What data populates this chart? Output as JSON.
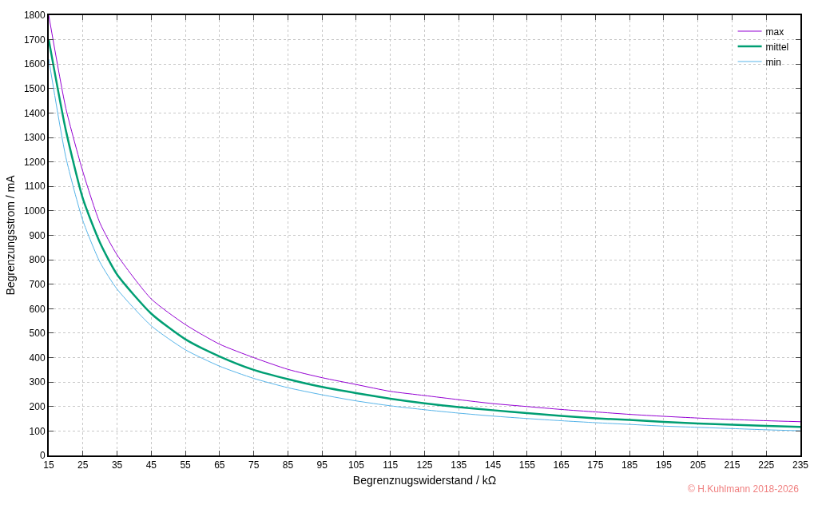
{
  "chart_data": {
    "type": "line",
    "xlabel": "Begrenznugswiderstand / kΩ",
    "ylabel": "Begrenzungsstrom / mA",
    "x": [
      15,
      20,
      25,
      30,
      35,
      45,
      55,
      65,
      75,
      85,
      95,
      105,
      115,
      125,
      135,
      145,
      155,
      165,
      175,
      185,
      195,
      205,
      215,
      225,
      235
    ],
    "series": [
      {
        "name": "max",
        "color": "#9400d3",
        "values": [
          1800,
          1420,
          1160,
          950,
          820,
          640,
          535,
          455,
          400,
          352,
          318,
          290,
          262,
          245,
          228,
          212,
          200,
          188,
          178,
          168,
          160,
          153,
          147,
          142,
          138
        ]
      },
      {
        "name": "mittel",
        "color": "#009e73",
        "values": [
          1700,
          1330,
          1050,
          870,
          740,
          580,
          475,
          405,
          350,
          312,
          280,
          255,
          232,
          213,
          198,
          185,
          173,
          162,
          152,
          145,
          137,
          131,
          126,
          121,
          117
        ]
      },
      {
        "name": "min",
        "color": "#56b4e9",
        "values": [
          1620,
          1220,
          960,
          790,
          680,
          530,
          432,
          365,
          315,
          277,
          248,
          223,
          203,
          187,
          173,
          161,
          151,
          142,
          134,
          127,
          120,
          115,
          110,
          105,
          101
        ]
      }
    ],
    "xlim": [
      15,
      235
    ],
    "xticks": [
      15,
      25,
      35,
      45,
      55,
      65,
      75,
      85,
      95,
      105,
      115,
      125,
      135,
      145,
      155,
      165,
      175,
      185,
      195,
      205,
      215,
      225,
      235
    ],
    "ylim": [
      0,
      1800
    ],
    "yticks": [
      0,
      100,
      200,
      300,
      400,
      500,
      600,
      700,
      800,
      900,
      1000,
      1100,
      1200,
      1300,
      1400,
      1500,
      1600,
      1700,
      1800
    ],
    "grid": true,
    "legend": "top right",
    "marker": "none",
    "line_style": "solid",
    "annotations": [
      "© H.Kuhlmann 2018-2026"
    ]
  }
}
